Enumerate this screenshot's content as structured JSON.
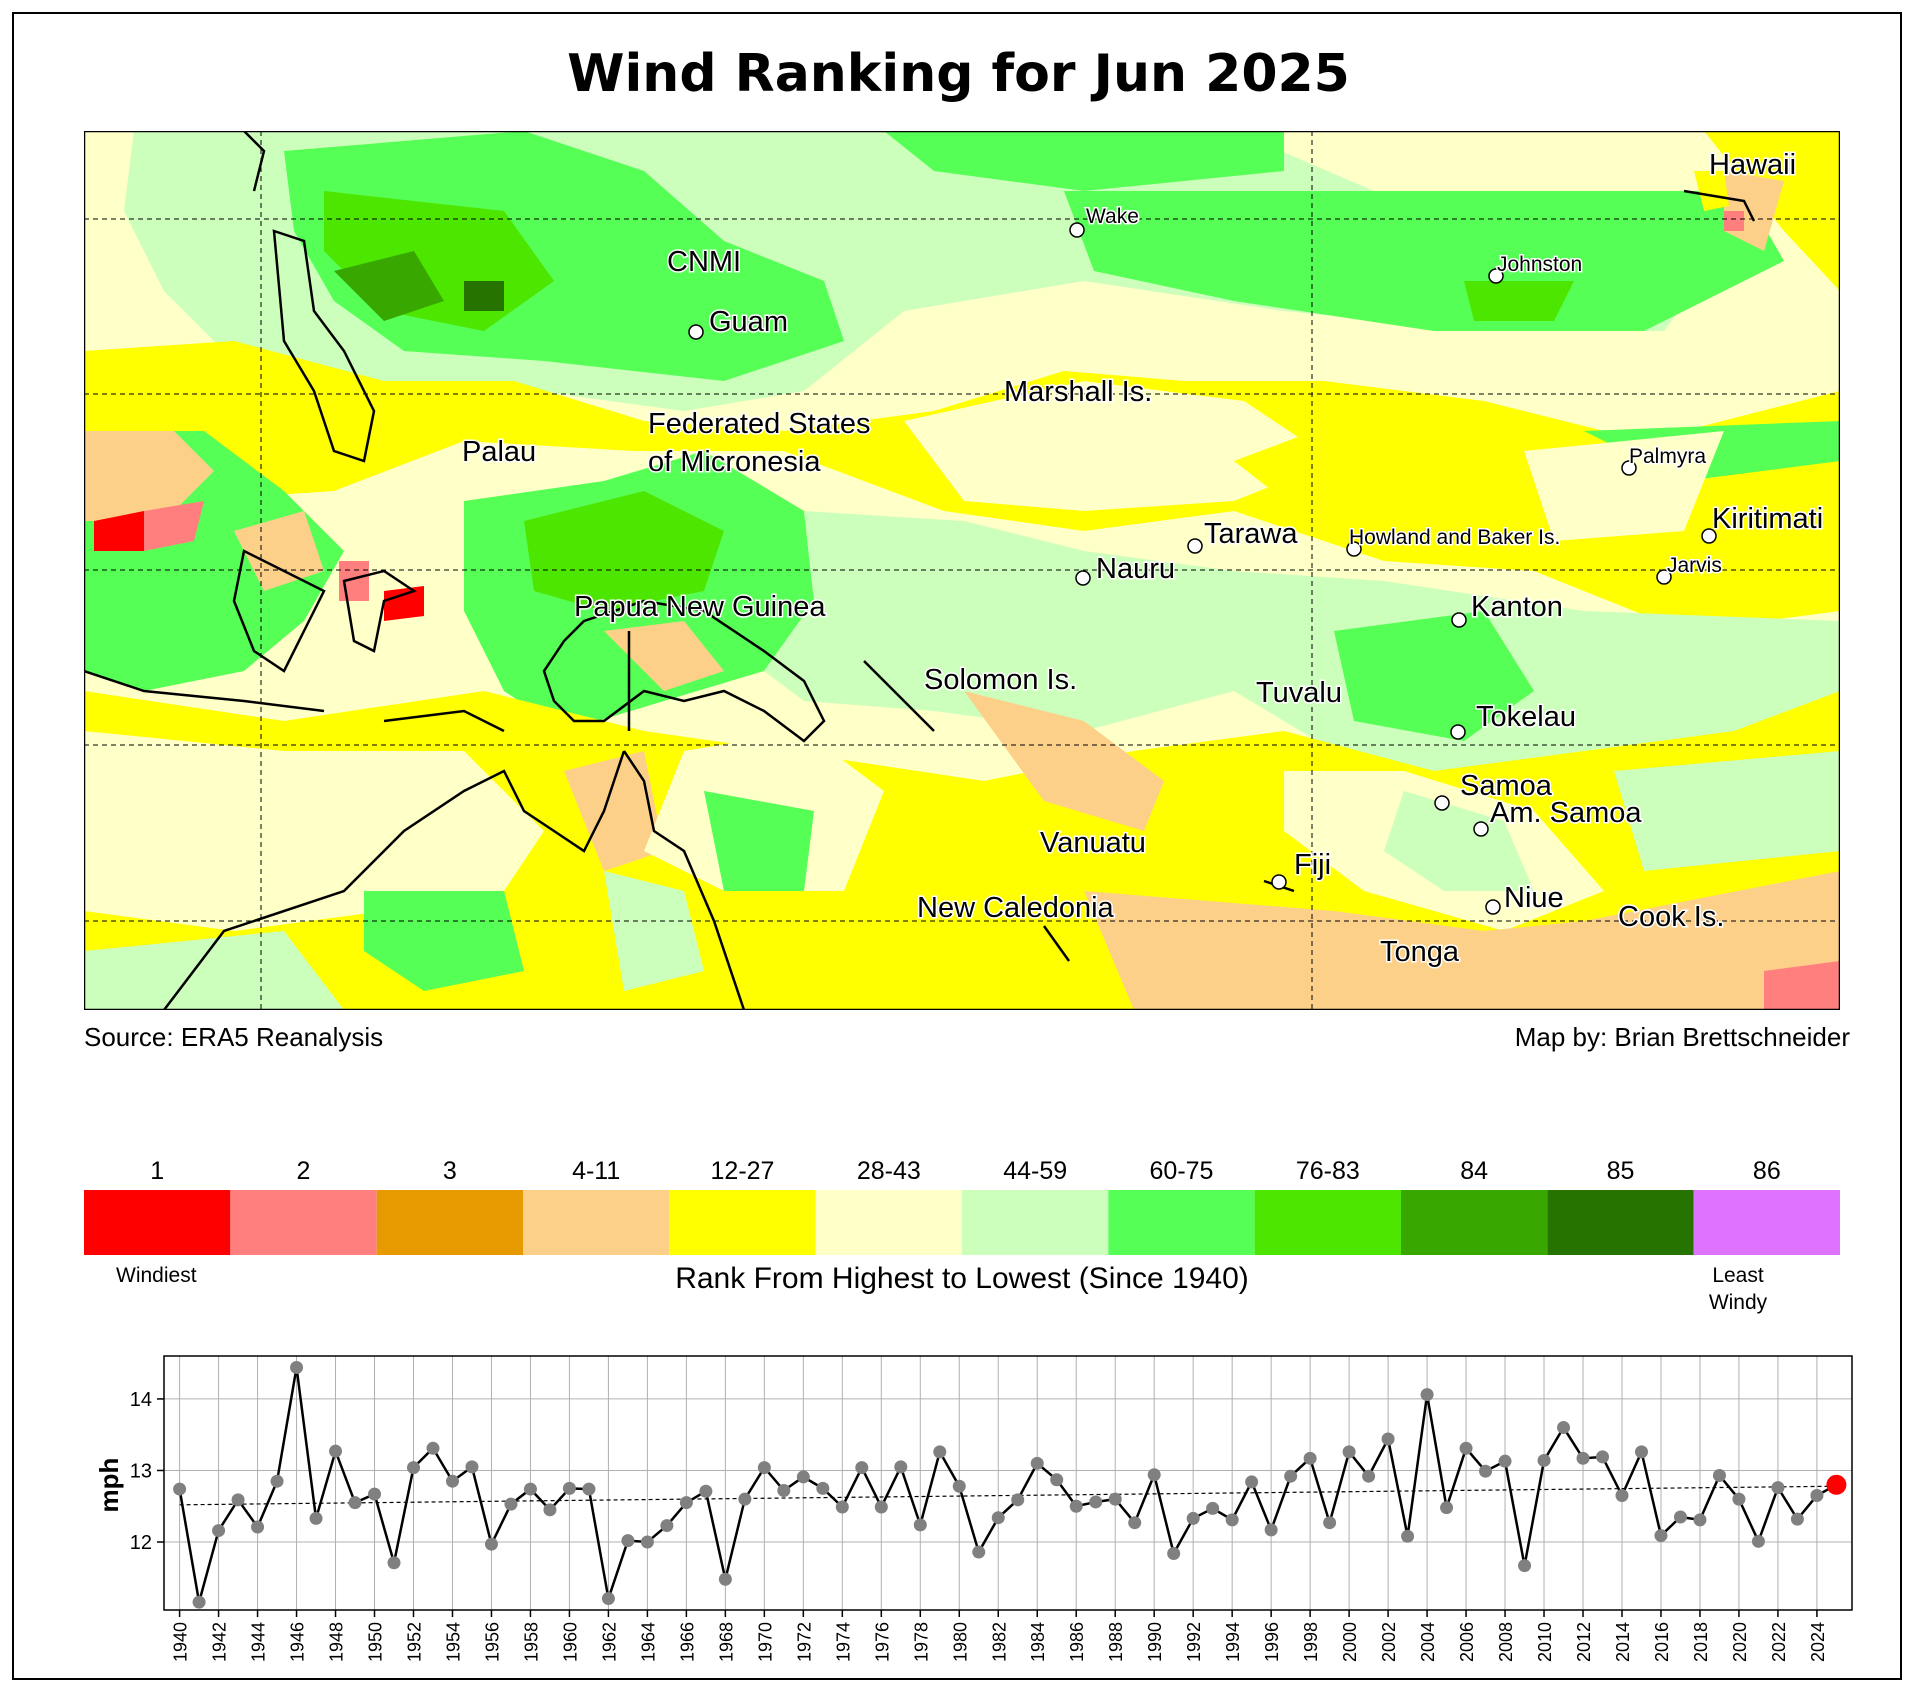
{
  "title": "Wind Ranking for Jun 2025",
  "source_text": "Source: ERA5 Reanalysis",
  "credit_text": "Map by: Brian Brettschneider",
  "map": {
    "labels": [
      {
        "text": "Hawaii",
        "size": "l",
        "dot": false
      },
      {
        "text": "Wake",
        "size": "s",
        "dot": true
      },
      {
        "text": "Johnston",
        "size": "s",
        "dot": true
      },
      {
        "text": "CNMI",
        "size": "l",
        "dot": false
      },
      {
        "text": "Guam",
        "size": "l",
        "dot": true
      },
      {
        "text": "Marshall Is.",
        "size": "l",
        "dot": false
      },
      {
        "text": "Palau",
        "size": "l",
        "dot": false
      },
      {
        "text": "Federated States",
        "size": "l",
        "dot": false
      },
      {
        "text": "of Micronesia",
        "size": "l",
        "dot": false
      },
      {
        "text": "Palmyra",
        "size": "s",
        "dot": true
      },
      {
        "text": "Kiritimati",
        "size": "l",
        "dot": true
      },
      {
        "text": "Tarawa",
        "size": "l",
        "dot": true
      },
      {
        "text": "Howland and Baker Is.",
        "size": "s",
        "dot": true
      },
      {
        "text": "Jarvis",
        "size": "s",
        "dot": true
      },
      {
        "text": "Nauru",
        "size": "l",
        "dot": true
      },
      {
        "text": "Kanton",
        "size": "l",
        "dot": true
      },
      {
        "text": "Papua New Guinea",
        "size": "l",
        "dot": false
      },
      {
        "text": "Solomon Is.",
        "size": "l",
        "dot": false
      },
      {
        "text": "Tuvalu",
        "size": "l",
        "dot": false
      },
      {
        "text": "Tokelau",
        "size": "l",
        "dot": true
      },
      {
        "text": "Samoa",
        "size": "l",
        "dot": true
      },
      {
        "text": "Am. Samoa",
        "size": "l",
        "dot": true
      },
      {
        "text": "Vanuatu",
        "size": "l",
        "dot": false
      },
      {
        "text": "Fiji",
        "size": "l",
        "dot": true
      },
      {
        "text": "Niue",
        "size": "l",
        "dot": true
      },
      {
        "text": "New Caledonia",
        "size": "l",
        "dot": false
      },
      {
        "text": "Cook Is.",
        "size": "l",
        "dot": false
      },
      {
        "text": "Tonga",
        "size": "l",
        "dot": false
      }
    ]
  },
  "colorbar": {
    "bins": [
      {
        "label": "1",
        "color": "#ff0000"
      },
      {
        "label": "2",
        "color": "#ff7f7f"
      },
      {
        "label": "3",
        "color": "#e69a00"
      },
      {
        "label": "4-11",
        "color": "#fdd08a"
      },
      {
        "label": "12-27",
        "color": "#ffff00"
      },
      {
        "label": "28-43",
        "color": "#ffffc8"
      },
      {
        "label": "44-59",
        "color": "#ccffbb"
      },
      {
        "label": "60-75",
        "color": "#55ff55"
      },
      {
        "label": "76-83",
        "color": "#4ce600"
      },
      {
        "label": "84",
        "color": "#38a800"
      },
      {
        "label": "85",
        "color": "#267300"
      },
      {
        "label": "86",
        "color": "#df73ff"
      }
    ],
    "left_end_label": "Windiest",
    "right_end_label_line1": "Least",
    "right_end_label_line2": "Windy",
    "caption": "Rank From Highest to Lowest (Since 1940)"
  },
  "chart_data": {
    "type": "line",
    "ylabel": "mph",
    "xlabel": "",
    "ylim": [
      11.05,
      14.6
    ],
    "yticks": [
      12,
      13,
      14
    ],
    "xlim": [
      1939.2,
      2025.8
    ],
    "x": [
      1940,
      1941,
      1942,
      1943,
      1944,
      1945,
      1946,
      1947,
      1948,
      1949,
      1950,
      1951,
      1952,
      1953,
      1954,
      1955,
      1956,
      1957,
      1958,
      1959,
      1960,
      1961,
      1962,
      1963,
      1964,
      1965,
      1966,
      1967,
      1968,
      1969,
      1970,
      1971,
      1972,
      1973,
      1974,
      1975,
      1976,
      1977,
      1978,
      1979,
      1980,
      1981,
      1982,
      1983,
      1984,
      1985,
      1986,
      1987,
      1988,
      1989,
      1990,
      1991,
      1992,
      1993,
      1994,
      1995,
      1996,
      1997,
      1998,
      1999,
      2000,
      2001,
      2002,
      2003,
      2004,
      2005,
      2006,
      2007,
      2008,
      2009,
      2010,
      2011,
      2012,
      2013,
      2014,
      2015,
      2016,
      2017,
      2018,
      2019,
      2020,
      2021,
      2022,
      2023,
      2024,
      2025
    ],
    "values": [
      12.74,
      11.16,
      12.16,
      12.59,
      12.21,
      12.85,
      14.44,
      12.33,
      13.27,
      12.55,
      12.67,
      11.71,
      13.04,
      13.31,
      12.85,
      13.05,
      11.97,
      12.53,
      12.74,
      12.45,
      12.75,
      12.74,
      11.21,
      12.02,
      12.0,
      12.23,
      12.55,
      12.71,
      11.48,
      12.6,
      13.04,
      12.72,
      12.91,
      12.75,
      12.49,
      13.04,
      12.49,
      13.05,
      12.24,
      13.26,
      12.78,
      11.86,
      12.34,
      12.59,
      13.1,
      12.87,
      12.5,
      12.56,
      12.6,
      12.27,
      12.94,
      11.84,
      12.33,
      12.47,
      12.31,
      12.84,
      12.17,
      12.92,
      13.17,
      12.27,
      13.26,
      12.92,
      13.44,
      12.08,
      14.06,
      12.48,
      13.31,
      12.99,
      13.13,
      11.67,
      13.14,
      13.6,
      13.17,
      13.19,
      12.65,
      13.26,
      12.09,
      12.35,
      12.31,
      12.93,
      12.6,
      12.01,
      12.76,
      12.32,
      12.65,
      12.8
    ],
    "trend": {
      "x": [
        1940,
        2025
      ],
      "y": [
        12.52,
        12.78
      ]
    },
    "highlight": {
      "x": 2025,
      "color": "#ff0000"
    },
    "xticks": [
      1940,
      1942,
      1944,
      1946,
      1948,
      1950,
      1952,
      1954,
      1956,
      1958,
      1960,
      1962,
      1964,
      1966,
      1968,
      1970,
      1972,
      1974,
      1976,
      1978,
      1980,
      1982,
      1984,
      1986,
      1988,
      1990,
      1992,
      1994,
      1996,
      1998,
      2000,
      2002,
      2004,
      2006,
      2008,
      2010,
      2012,
      2014,
      2016,
      2018,
      2020,
      2022,
      2024
    ],
    "grid": true
  }
}
